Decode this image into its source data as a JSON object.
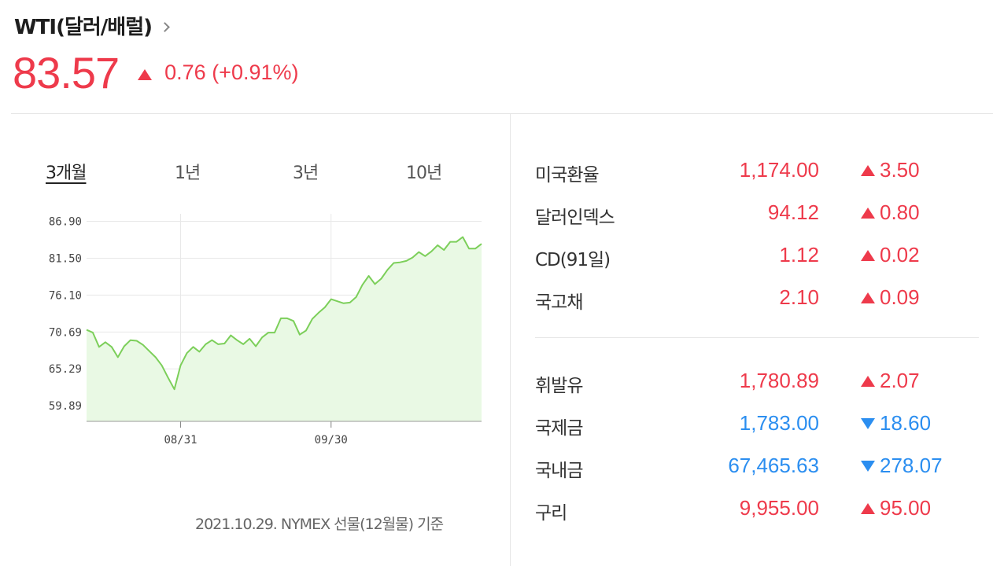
{
  "header": {
    "title": "WTI(달러/배럴)",
    "price": "83.57",
    "change": "0.76 (+0.91%)",
    "direction": "up"
  },
  "tabs": [
    {
      "label": "3개월",
      "active": true
    },
    {
      "label": "1년",
      "active": false
    },
    {
      "label": "3년",
      "active": false
    },
    {
      "label": "10년",
      "active": false
    }
  ],
  "chart_data": {
    "type": "area",
    "y_ticks": [
      "86.90",
      "81.50",
      "76.10",
      "70.69",
      "65.29",
      "59.89"
    ],
    "x_ticks": [
      "08/31",
      "09/30"
    ],
    "values": [
      71.0,
      70.6,
      68.5,
      69.2,
      68.5,
      67.0,
      68.6,
      69.5,
      69.4,
      68.8,
      67.9,
      67.0,
      65.8,
      64.0,
      62.3,
      65.8,
      67.6,
      68.5,
      67.8,
      68.9,
      69.5,
      68.9,
      69.0,
      70.2,
      69.5,
      68.9,
      69.7,
      68.6,
      69.9,
      70.6,
      70.6,
      72.7,
      72.7,
      72.3,
      70.3,
      70.9,
      72.6,
      73.5,
      74.3,
      75.5,
      75.2,
      74.9,
      75.0,
      75.8,
      77.6,
      78.9,
      77.7,
      78.5,
      79.8,
      80.8,
      80.9,
      81.1,
      81.6,
      82.4,
      81.8,
      82.5,
      83.4,
      82.7,
      83.9,
      83.9,
      84.6,
      82.9,
      82.9,
      83.6
    ],
    "ylim": [
      57.6,
      88.0
    ],
    "grid": true,
    "line_color": "#7ccf5a",
    "fill_color": "#e9f9e4"
  },
  "footnote": "2021.10.29. NYMEX 선물(12월물) 기준",
  "market": {
    "group1": [
      {
        "name": "미국환율",
        "value": "1,174.00",
        "change": "3.50",
        "dir": "up"
      },
      {
        "name": "달러인덱스",
        "value": "94.12",
        "change": "0.80",
        "dir": "up"
      },
      {
        "name": "CD(91일)",
        "value": "1.12",
        "change": "0.02",
        "dir": "up"
      },
      {
        "name": "국고채",
        "value": "2.10",
        "change": "0.09",
        "dir": "up"
      }
    ],
    "group2": [
      {
        "name": "휘발유",
        "value": "1,780.89",
        "change": "2.07",
        "dir": "up"
      },
      {
        "name": "국제금",
        "value": "1,783.00",
        "change": "18.60",
        "dir": "down"
      },
      {
        "name": "국내금",
        "value": "67,465.63",
        "change": "278.07",
        "dir": "down"
      },
      {
        "name": "구리",
        "value": "9,955.00",
        "change": "95.00",
        "dir": "up"
      }
    ]
  },
  "colors": {
    "up": "#ee3a4b",
    "down": "#2b8ef0"
  }
}
